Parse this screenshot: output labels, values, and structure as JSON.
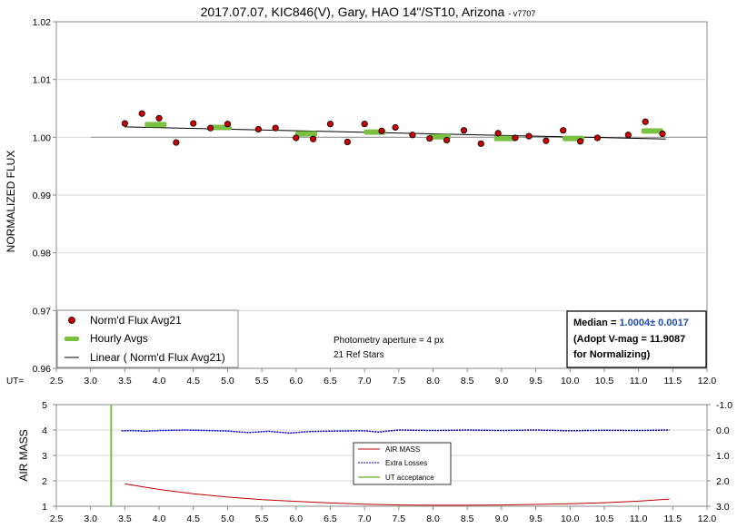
{
  "title": "2017.07.07, KIC846(V), Gary, HAO 14\"/ST10, Arizona",
  "title_suffix": "- v7707",
  "top_panel": {
    "ylabel": "NORMALIZED FLUX",
    "ut_label": "UT=",
    "annotation_aperture": "Photometry aperture = 4 px",
    "annotation_refs": "21 Ref Stars",
    "median_label": "Median = ",
    "median_value": "1.0004± 0.0017",
    "adopt_line": "(Adopt V-mag = 11.9087",
    "adopt_line2": " for Normalizing)",
    "legend": {
      "points": "Norm'd Flux Avg21",
      "hourly": "Hourly Avgs",
      "linear": "Linear ( Norm'd Flux Avg21)"
    },
    "x_ticks": [
      "2.5",
      "3.0",
      "3.5",
      "4.0",
      "4.5",
      "5.0",
      "5.5",
      "6.0",
      "6.5",
      "7.0",
      "7.5",
      "8.0",
      "8.5",
      "9.0",
      "9.5",
      "10.0",
      "10.5",
      "11.0",
      "11.5",
      "12.0"
    ],
    "y_ticks": [
      "0.96",
      "0.97",
      "0.98",
      "0.99",
      "1.00",
      "1.01",
      "1.02"
    ]
  },
  "bottom_panel": {
    "ylabel": "AIR MASS",
    "x_ticks": [
      "2.5",
      "3.0",
      "3.5",
      "4.0",
      "4.5",
      "5.0",
      "5.5",
      "6.0",
      "6.5",
      "7.0",
      "7.5",
      "8.0",
      "8.5",
      "9.0",
      "9.5",
      "10.0",
      "10.5",
      "11.0",
      "11.5",
      "12.0"
    ],
    "y_ticks_left": [
      "1",
      "2",
      "3",
      "4",
      "5"
    ],
    "y_ticks_right": [
      "3.0",
      "2.0",
      "1.0",
      "0.0",
      "-1.0"
    ],
    "legend": {
      "airmass": "AIR MASS",
      "extra": "Extra Losses",
      "ut": "UT acceptance"
    }
  },
  "chart_data": [
    {
      "type": "scatter",
      "xlim": [
        2.5,
        12.0
      ],
      "ylim": [
        0.96,
        1.02
      ],
      "series": [
        {
          "name": "Norm'd Flux Avg21",
          "color": "#cc0000",
          "points": [
            [
              3.5,
              1.0024
            ],
            [
              3.75,
              1.0041
            ],
            [
              4.0,
              1.0033
            ],
            [
              4.25,
              0.9991
            ],
            [
              4.5,
              1.0024
            ],
            [
              4.75,
              1.0016
            ],
            [
              5.0,
              1.0023
            ],
            [
              5.45,
              1.0014
            ],
            [
              5.7,
              1.0016
            ],
            [
              6.0,
              0.9999
            ],
            [
              6.25,
              0.9997
            ],
            [
              6.5,
              1.0023
            ],
            [
              6.75,
              0.9992
            ],
            [
              7.0,
              1.0023
            ],
            [
              7.25,
              1.0011
            ],
            [
              7.45,
              1.0017
            ],
            [
              7.7,
              1.0004
            ],
            [
              7.95,
              0.9998
            ],
            [
              8.2,
              0.9995
            ],
            [
              8.45,
              1.0012
            ],
            [
              8.7,
              0.9989
            ],
            [
              8.95,
              1.0007
            ],
            [
              9.2,
              0.9999
            ],
            [
              9.4,
              1.0002
            ],
            [
              9.65,
              0.9994
            ],
            [
              9.9,
              1.0012
            ],
            [
              10.15,
              0.9993
            ],
            [
              10.4,
              0.9999
            ],
            [
              10.85,
              1.0004
            ],
            [
              11.1,
              1.0027
            ],
            [
              11.35,
              1.0006
            ]
          ]
        },
        {
          "name": "Hourly Avgs",
          "color": "#7ac143",
          "points": [
            [
              3.95,
              1.0022
            ],
            [
              4.9,
              1.0017
            ],
            [
              6.15,
              1.0006
            ],
            [
              7.15,
              1.0009
            ],
            [
              8.1,
              1.0001
            ],
            [
              9.05,
              0.9998
            ],
            [
              10.05,
              0.9998
            ],
            [
              11.2,
              1.0011
            ]
          ]
        },
        {
          "name": "Linear ( Norm'd Flux Avg21)",
          "color": "#000000",
          "line": [
            [
              3.5,
              1.0018
            ],
            [
              11.4,
              0.9997
            ]
          ]
        }
      ]
    },
    {
      "type": "line",
      "xlim": [
        2.5,
        12.0
      ],
      "ylim": [
        1,
        5
      ],
      "y2lim": [
        3.0,
        -1.0
      ],
      "series": [
        {
          "name": "AIR MASS",
          "color": "#c00000",
          "points": [
            [
              3.5,
              1.88
            ],
            [
              4.0,
              1.66
            ],
            [
              4.5,
              1.49
            ],
            [
              5.0,
              1.36
            ],
            [
              5.5,
              1.26
            ],
            [
              6.0,
              1.19
            ],
            [
              6.5,
              1.13
            ],
            [
              7.0,
              1.08
            ],
            [
              7.5,
              1.05
            ],
            [
              8.0,
              1.04
            ],
            [
              8.5,
              1.04
            ],
            [
              9.0,
              1.05
            ],
            [
              9.5,
              1.07
            ],
            [
              10.0,
              1.1
            ],
            [
              10.5,
              1.14
            ],
            [
              11.0,
              1.2
            ],
            [
              11.45,
              1.28
            ]
          ]
        },
        {
          "name": "Extra Losses",
          "color": "#0000cc",
          "points": [
            [
              3.45,
              0.03
            ],
            [
              3.6,
              0.02
            ],
            [
              3.8,
              0.05
            ],
            [
              4.0,
              0.02
            ],
            [
              4.4,
              0.0
            ],
            [
              5.0,
              0.04
            ],
            [
              5.3,
              0.1
            ],
            [
              5.6,
              0.05
            ],
            [
              5.9,
              0.12
            ],
            [
              6.2,
              0.06
            ],
            [
              6.6,
              0.04
            ],
            [
              7.0,
              0.03
            ],
            [
              7.2,
              0.08
            ],
            [
              7.5,
              0.0
            ],
            [
              8.0,
              0.02
            ],
            [
              8.5,
              0.0
            ],
            [
              9.0,
              0.02
            ],
            [
              9.5,
              0.0
            ],
            [
              10.0,
              0.03
            ],
            [
              10.5,
              0.01
            ],
            [
              11.0,
              0.02
            ],
            [
              11.45,
              0.0
            ]
          ]
        },
        {
          "name": "UT acceptance",
          "color": "#7ac143",
          "x": 3.3
        }
      ]
    }
  ]
}
